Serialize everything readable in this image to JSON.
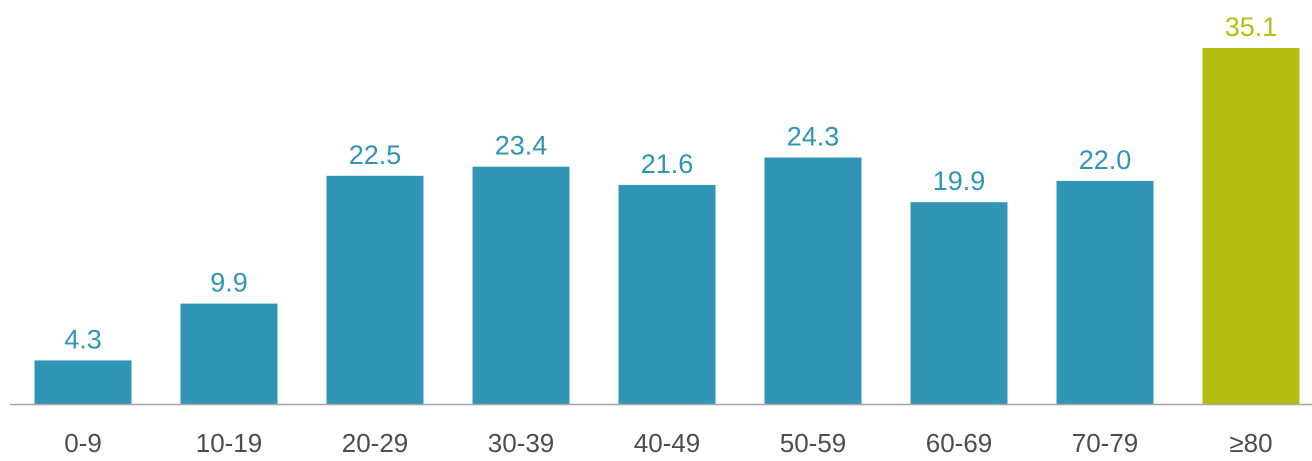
{
  "chart_data": {
    "type": "bar",
    "title": "",
    "xlabel": "",
    "ylabel": "",
    "categories": [
      "0-9",
      "10-19",
      "20-29",
      "30-39",
      "40-49",
      "50-59",
      "60-69",
      "70-79",
      "≥80"
    ],
    "values": [
      4.3,
      9.9,
      22.5,
      23.4,
      21.6,
      24.3,
      19.9,
      22.0,
      35.1
    ],
    "value_labels": [
      "4.3",
      "9.9",
      "22.5",
      "23.4",
      "21.6",
      "24.3",
      "19.9",
      "22.0",
      "35.1"
    ],
    "highlight_index": 8,
    "ylim": [
      0,
      35.1
    ],
    "grid": false,
    "colors": {
      "bar": "#3195b5",
      "highlight": "#b5be0e",
      "label": "#3195b5",
      "highlight_label": "#b5be0e",
      "axis": "#a6a6a6"
    }
  }
}
